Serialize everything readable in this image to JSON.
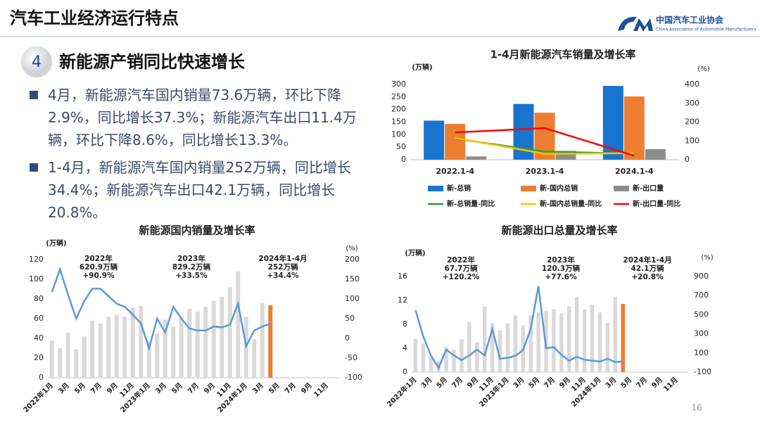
{
  "header": {
    "title": "汽车工业经济运行特点",
    "logo_name": "中国汽车工业协会",
    "logo_sub": "China Association of Automobile Manufacturers"
  },
  "section": {
    "number": "4",
    "title": "新能源产销同比快速增长"
  },
  "bullets": [
    "4月，新能源汽车国内销量73.6万辆，环比下降2.9%，同比增长37.3%；新能源汽车出口11.4万辆，环比下降8.6%，同比增长13.3%。",
    "1-4月，新能源汽车国内销量252万辆，同比增长34.4%；新能源汽车出口42.1万辆，同比增长20.8%。"
  ],
  "page_number": "16",
  "chart_data": [
    {
      "type": "bar",
      "title": "1-4月新能源汽车销量及增长率",
      "y_unit": "(万辆)",
      "y2_unit": "(%)",
      "categories": [
        "2022.1-4",
        "2023.1-4",
        "2024.1-4"
      ],
      "series": [
        {
          "name": "新-总销",
          "type": "bar",
          "color": "#1874cd",
          "values": [
            155.6,
            222.2,
            294
          ]
        },
        {
          "name": "新-国内总销",
          "type": "bar",
          "color": "#ed7d31",
          "values": [
            142.6,
            187.3,
            252
          ]
        },
        {
          "name": "新-出口量",
          "type": "bar",
          "color": "#8c8c8c",
          "values": [
            13,
            34.9,
            42.1
          ]
        },
        {
          "name": "新-总销量-同比",
          "type": "line",
          "axis": "y2",
          "color": "#2ca02c",
          "values": [
            112,
            42.8,
            32.3
          ]
        },
        {
          "name": "新-国内总销量-同比",
          "type": "line",
          "axis": "y2",
          "color": "#ffc000",
          "values": [
            115,
            31.3,
            34.4
          ]
        },
        {
          "name": "新-出口量-同比",
          "type": "line",
          "axis": "y2",
          "color": "#ff0000",
          "values": [
            145,
            168,
            20.8
          ]
        }
      ],
      "ylim": [
        0,
        300
      ],
      "yticks": [
        0,
        50,
        100,
        150,
        200,
        250,
        300
      ],
      "y2lim": [
        0,
        400
      ],
      "y2ticks": [
        0,
        100,
        200,
        300,
        400
      ],
      "grid": false,
      "legend": "bottom"
    },
    {
      "type": "bar",
      "title": "新能源国内销量及增长率",
      "y_unit": "(万辆)",
      "y2_unit": "(%)",
      "categories": [
        "2022年1月",
        null,
        "3月",
        null,
        "5月",
        null,
        "7月",
        null,
        "9月",
        null,
        "11月",
        null,
        "2023年1月",
        null,
        "3月",
        null,
        "5月",
        null,
        "7月",
        null,
        "9月",
        null,
        "11月",
        null,
        "2024年1月",
        null,
        "3月",
        null,
        "5月",
        null,
        "7月",
        null,
        "9月",
        null,
        "11月",
        null
      ],
      "series": [
        {
          "type": "bar",
          "color": "#d9d9d9",
          "highlight": {
            "index": 27,
            "color": "#ed7d31"
          },
          "values": [
            38,
            30,
            46,
            29,
            42,
            58,
            55,
            62,
            64,
            62,
            71,
            73,
            37,
            45,
            59,
            52,
            62,
            70,
            67,
            72,
            78,
            82,
            92,
            108,
            62,
            39,
            76,
            73.6,
            null,
            null,
            null,
            null,
            null,
            null,
            null,
            null
          ]
        },
        {
          "type": "line",
          "axis": "y2",
          "color": "#5b9bd5",
          "values": [
            118,
            175,
            110,
            50,
            95,
            126,
            126,
            107,
            88,
            80,
            60,
            38,
            -25,
            50,
            15,
            80,
            50,
            25,
            20,
            20,
            30,
            28,
            35,
            88,
            -20,
            20,
            30,
            37.3,
            null,
            null,
            null,
            null,
            null,
            null,
            null,
            null
          ]
        }
      ],
      "ylim": [
        0,
        120
      ],
      "yticks": [
        0,
        20,
        40,
        60,
        80,
        100,
        120
      ],
      "y2lim": [
        -100,
        200
      ],
      "y2ticks": [
        -100,
        -50,
        0,
        50,
        100,
        150,
        200
      ],
      "grid": false,
      "annotations": [
        [
          "2022年",
          "620.9万辆",
          "+90.9%"
        ],
        [
          "2023年",
          "829.2万辆",
          "+33.5%"
        ],
        [
          "2024年1-4月",
          "252万辆",
          "+34.4%"
        ]
      ]
    },
    {
      "type": "bar",
      "title": "新能源出口总量及增长率",
      "y_unit": "(万辆)",
      "y2_unit": "(%)",
      "categories": [
        "2022年1月",
        null,
        "3月",
        null,
        "5月",
        null,
        "7月",
        null,
        "9月",
        null,
        "11月",
        null,
        "2023年1月",
        null,
        "3月",
        null,
        "5月",
        null,
        "7月",
        null,
        "9月",
        null,
        "11月",
        null,
        "2024年1月",
        null,
        "3月",
        null,
        "5月",
        null,
        "7月",
        null,
        "9月",
        null,
        "11月",
        null
      ],
      "series": [
        {
          "type": "bar",
          "color": "#d9d9d9",
          "highlight": {
            "index": 27,
            "color": "#ed7d31"
          },
          "values": [
            5.6,
            4.8,
            2.6,
            1.8,
            4.2,
            3.8,
            5.5,
            8.4,
            5.0,
            11.0,
            8.2,
            7.0,
            8.2,
            9.5,
            7.8,
            9.5,
            10.0,
            10.3,
            10.5,
            9.8,
            11.0,
            12.5,
            10.5,
            11.3,
            10.0,
            8.2,
            12.5,
            11.4,
            null,
            null,
            null,
            null,
            null,
            null,
            null,
            null
          ]
        },
        {
          "type": "line",
          "axis": "y2",
          "color": "#5b9bd5",
          "values": [
            548,
            275,
            75,
            -56,
            135,
            75,
            25,
            75,
            135,
            75,
            350,
            40,
            50,
            70,
            130,
            350,
            800,
            150,
            160,
            80,
            20,
            60,
            30,
            20,
            10,
            40,
            5,
            13.3,
            null,
            null,
            null,
            null,
            null,
            null,
            null,
            null
          ]
        }
      ],
      "ylim": [
        0,
        16
      ],
      "yticks": [
        0,
        4,
        8,
        12,
        16
      ],
      "y2lim": [
        -100,
        900
      ],
      "y2ticks": [
        -100,
        100,
        300,
        500,
        700,
        900
      ],
      "grid": false,
      "annotations": [
        [
          "2022年",
          "67.7万辆",
          "+120.2%"
        ],
        [
          "2023年",
          "120.3万辆",
          "+77.6%"
        ],
        [
          "2024年1-4月",
          "42.1万辆",
          "+20.8%"
        ]
      ]
    }
  ]
}
